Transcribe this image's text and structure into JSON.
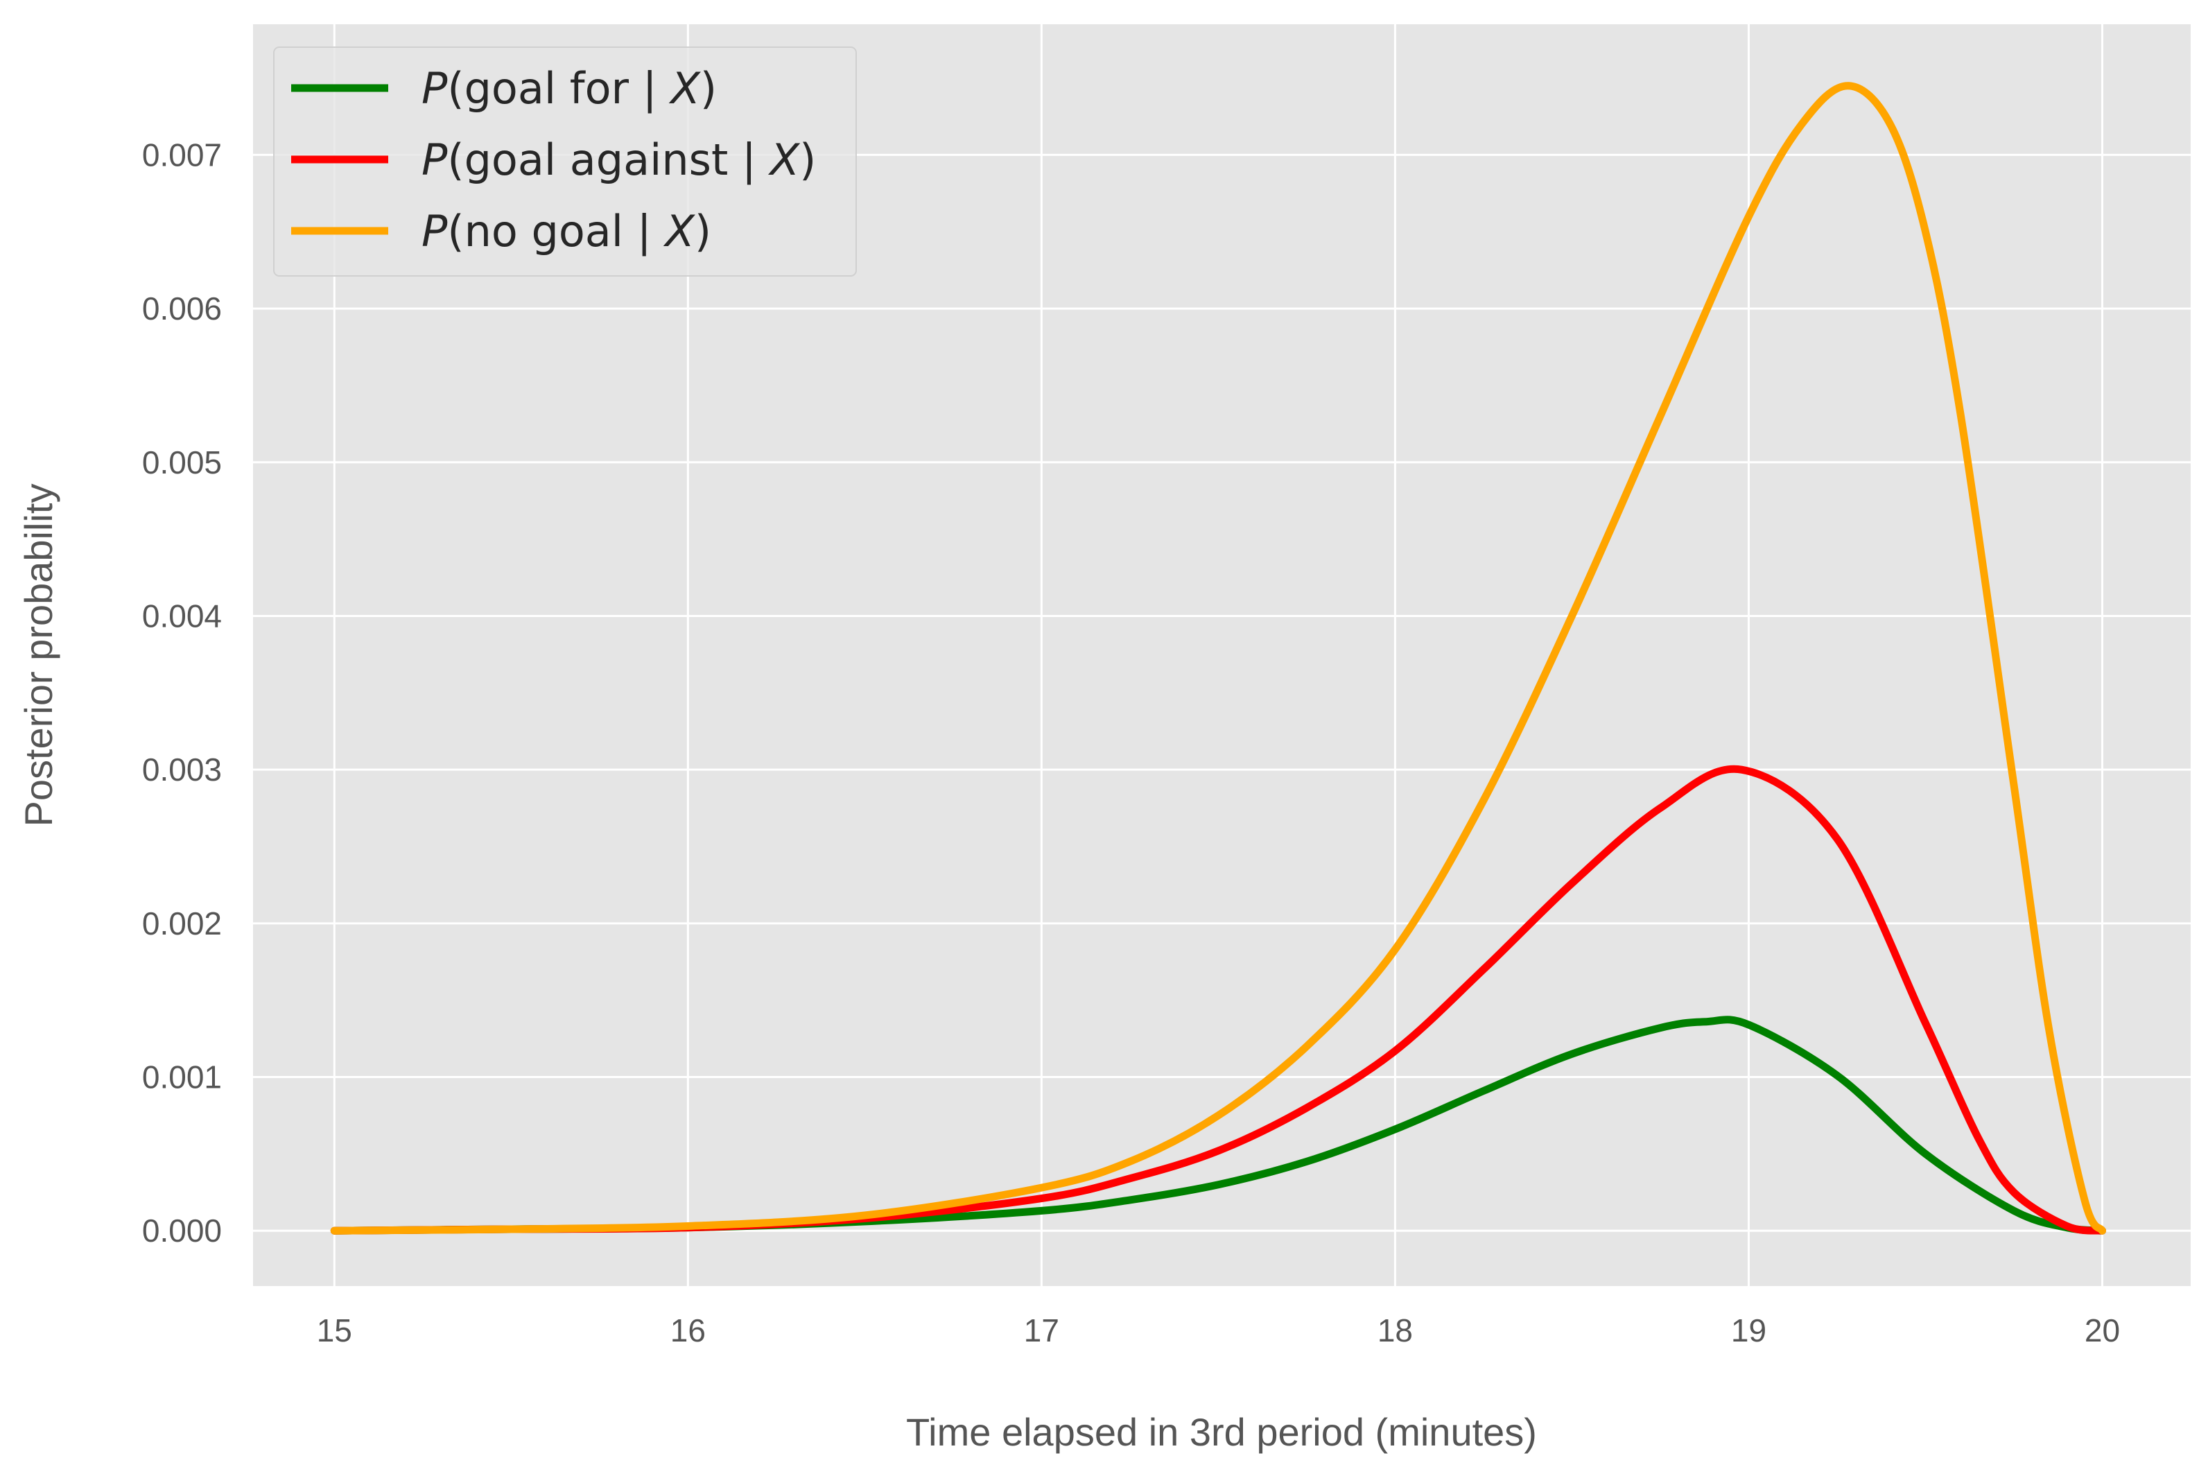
{
  "chart_data": {
    "type": "line",
    "title": "",
    "xlabel": "Time elapsed in 3rd period (minutes)",
    "ylabel": "Posterior probability",
    "xlim": [
      14.77,
      20.25
    ],
    "ylim": [
      -0.00036,
      0.00785
    ],
    "xticks": [
      15,
      16,
      17,
      18,
      19,
      20
    ],
    "xtick_labels": [
      "15",
      "16",
      "17",
      "18",
      "19",
      "20"
    ],
    "yticks": [
      0.0,
      0.001,
      0.002,
      0.003,
      0.004,
      0.005,
      0.006,
      0.007
    ],
    "ytick_labels": [
      "0.000",
      "0.001",
      "0.002",
      "0.003",
      "0.004",
      "0.005",
      "0.006",
      "0.007"
    ],
    "grid": true,
    "background_color": "#e5e5e5",
    "grid_color": "#ffffff",
    "legend_position": "top-left",
    "series": [
      {
        "name": "P(goal for | X)",
        "legend_parts": {
          "italic": "P",
          "middle": "(goal for | ",
          "italic2": "X",
          "end": ")"
        },
        "color": "#008000",
        "x": [
          15.0,
          15.5,
          16.0,
          16.5,
          17.0,
          17.25,
          17.5,
          17.75,
          18.0,
          18.25,
          18.5,
          18.75,
          18.88,
          19.0,
          19.25,
          19.5,
          19.75,
          19.9,
          20.0
        ],
        "y": [
          0.0,
          1e-05,
          2e-05,
          6e-05,
          0.00013,
          0.0002,
          0.0003,
          0.00045,
          0.00066,
          0.00091,
          0.00115,
          0.00132,
          0.00136,
          0.00134,
          0.00101,
          0.0005,
          0.00013,
          2e-05,
          0.0
        ]
      },
      {
        "name": "P(goal against | X)",
        "legend_parts": {
          "italic": "P",
          "middle": "(goal against | ",
          "italic2": "X",
          "end": ")"
        },
        "color": "#ff0000",
        "x": [
          15.0,
          15.5,
          16.0,
          16.5,
          17.0,
          17.25,
          17.5,
          17.75,
          18.0,
          18.25,
          18.5,
          18.75,
          18.98,
          19.25,
          19.5,
          19.65,
          19.75,
          19.9,
          20.0
        ],
        "y": [
          0.0,
          1e-05,
          2e-05,
          8e-05,
          0.00021,
          0.00034,
          0.00052,
          0.0008,
          0.00117,
          0.0017,
          0.00226,
          0.00275,
          0.003,
          0.00255,
          0.00135,
          0.0006,
          0.00025,
          3e-05,
          0.0
        ]
      },
      {
        "name": "P(no goal | X)",
        "legend_parts": {
          "italic": "P",
          "middle": "(no goal | ",
          "italic2": "X",
          "end": ")"
        },
        "color": "#ffa500",
        "x": [
          15.0,
          15.5,
          16.0,
          16.5,
          17.0,
          17.25,
          17.5,
          17.75,
          18.0,
          18.25,
          18.5,
          18.75,
          19.0,
          19.15,
          19.28,
          19.4,
          19.5,
          19.6,
          19.75,
          19.85,
          19.95,
          20.0
        ],
        "y": [
          0.0,
          1e-05,
          3e-05,
          0.0001,
          0.00028,
          0.00045,
          0.00075,
          0.0012,
          0.00183,
          0.0028,
          0.004,
          0.0053,
          0.0066,
          0.0072,
          0.00745,
          0.0072,
          0.0065,
          0.0053,
          0.0029,
          0.0013,
          0.0002,
          0.0
        ]
      }
    ]
  }
}
